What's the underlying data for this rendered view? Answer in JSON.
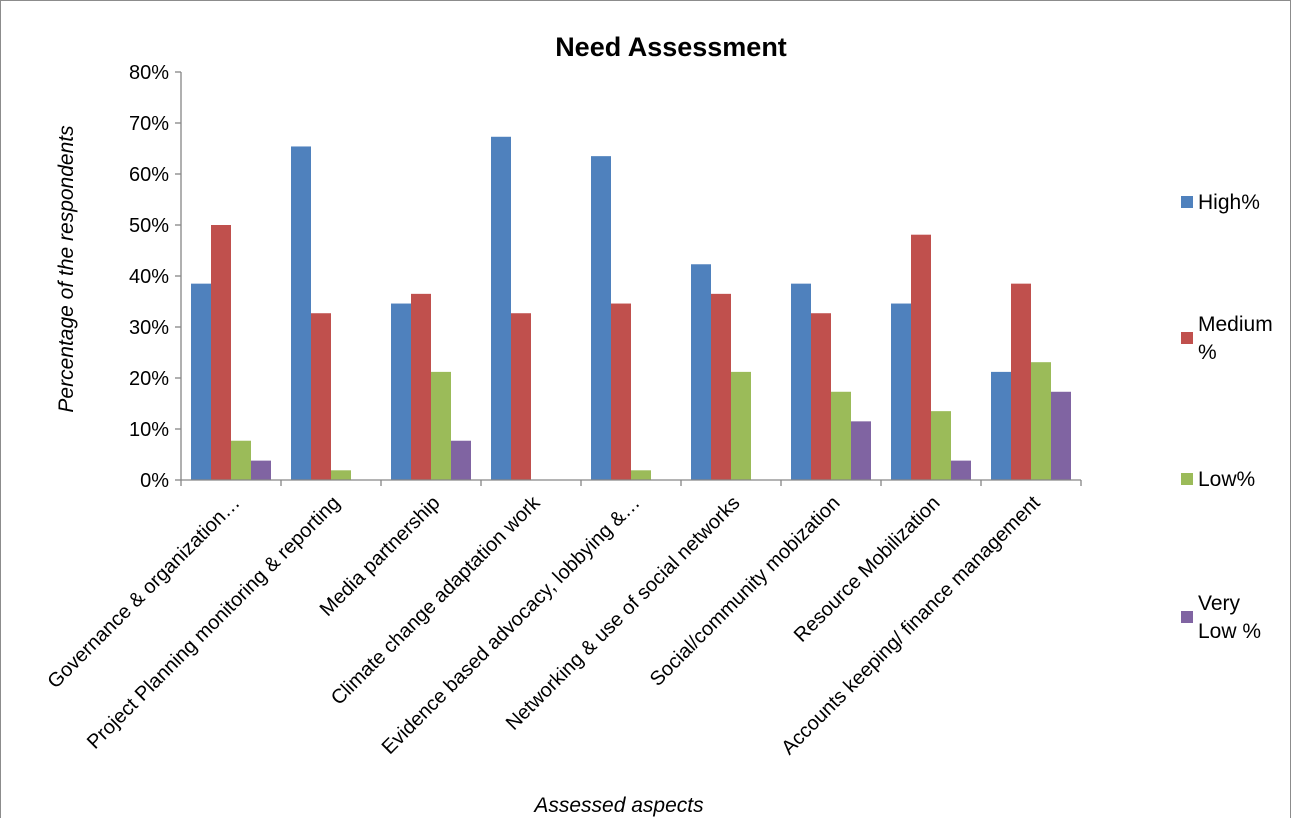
{
  "chart_data": {
    "type": "bar",
    "title": "Need Assessment",
    "xlabel": "Assessed aspects",
    "ylabel": "Percentage of the respondents",
    "ylim": [
      0,
      0.8
    ],
    "y_ticks": [
      "0%",
      "10%",
      "20%",
      "30%",
      "40%",
      "50%",
      "60%",
      "70%",
      "80%"
    ],
    "grid": false,
    "legend_position": "right",
    "categories": [
      "Governance & organization…",
      "Project Planning monitoring & reporting",
      "Media partnership",
      "Climate change adaptation work",
      "Evidence based advocacy, lobbying &…",
      "Networking & use of social networks",
      "Social/community mobization",
      "Resource Mobilization",
      "Accounts keeping/ finance management"
    ],
    "series": [
      {
        "name": "High%",
        "legend_lines": [
          "High%"
        ],
        "color": "#4f81bd",
        "values": [
          0.385,
          0.654,
          0.346,
          0.673,
          0.635,
          0.423,
          0.385,
          0.346,
          0.212
        ]
      },
      {
        "name": "Medium %",
        "legend_lines": [
          "Medium",
          "%"
        ],
        "color": "#c0504d",
        "values": [
          0.5,
          0.327,
          0.365,
          0.327,
          0.346,
          0.365,
          0.327,
          0.481,
          0.385
        ]
      },
      {
        "name": "Low%",
        "legend_lines": [
          "Low%"
        ],
        "color": "#9bbb59",
        "values": [
          0.077,
          0.019,
          0.212,
          0,
          0.019,
          0.212,
          0.173,
          0.135,
          0.231
        ]
      },
      {
        "name": "Very Low %",
        "legend_lines": [
          "Very",
          "Low %"
        ],
        "color": "#8064a2",
        "values": [
          0.038,
          0,
          0.077,
          0,
          0,
          0,
          0.115,
          0.038,
          0.173
        ]
      }
    ]
  }
}
